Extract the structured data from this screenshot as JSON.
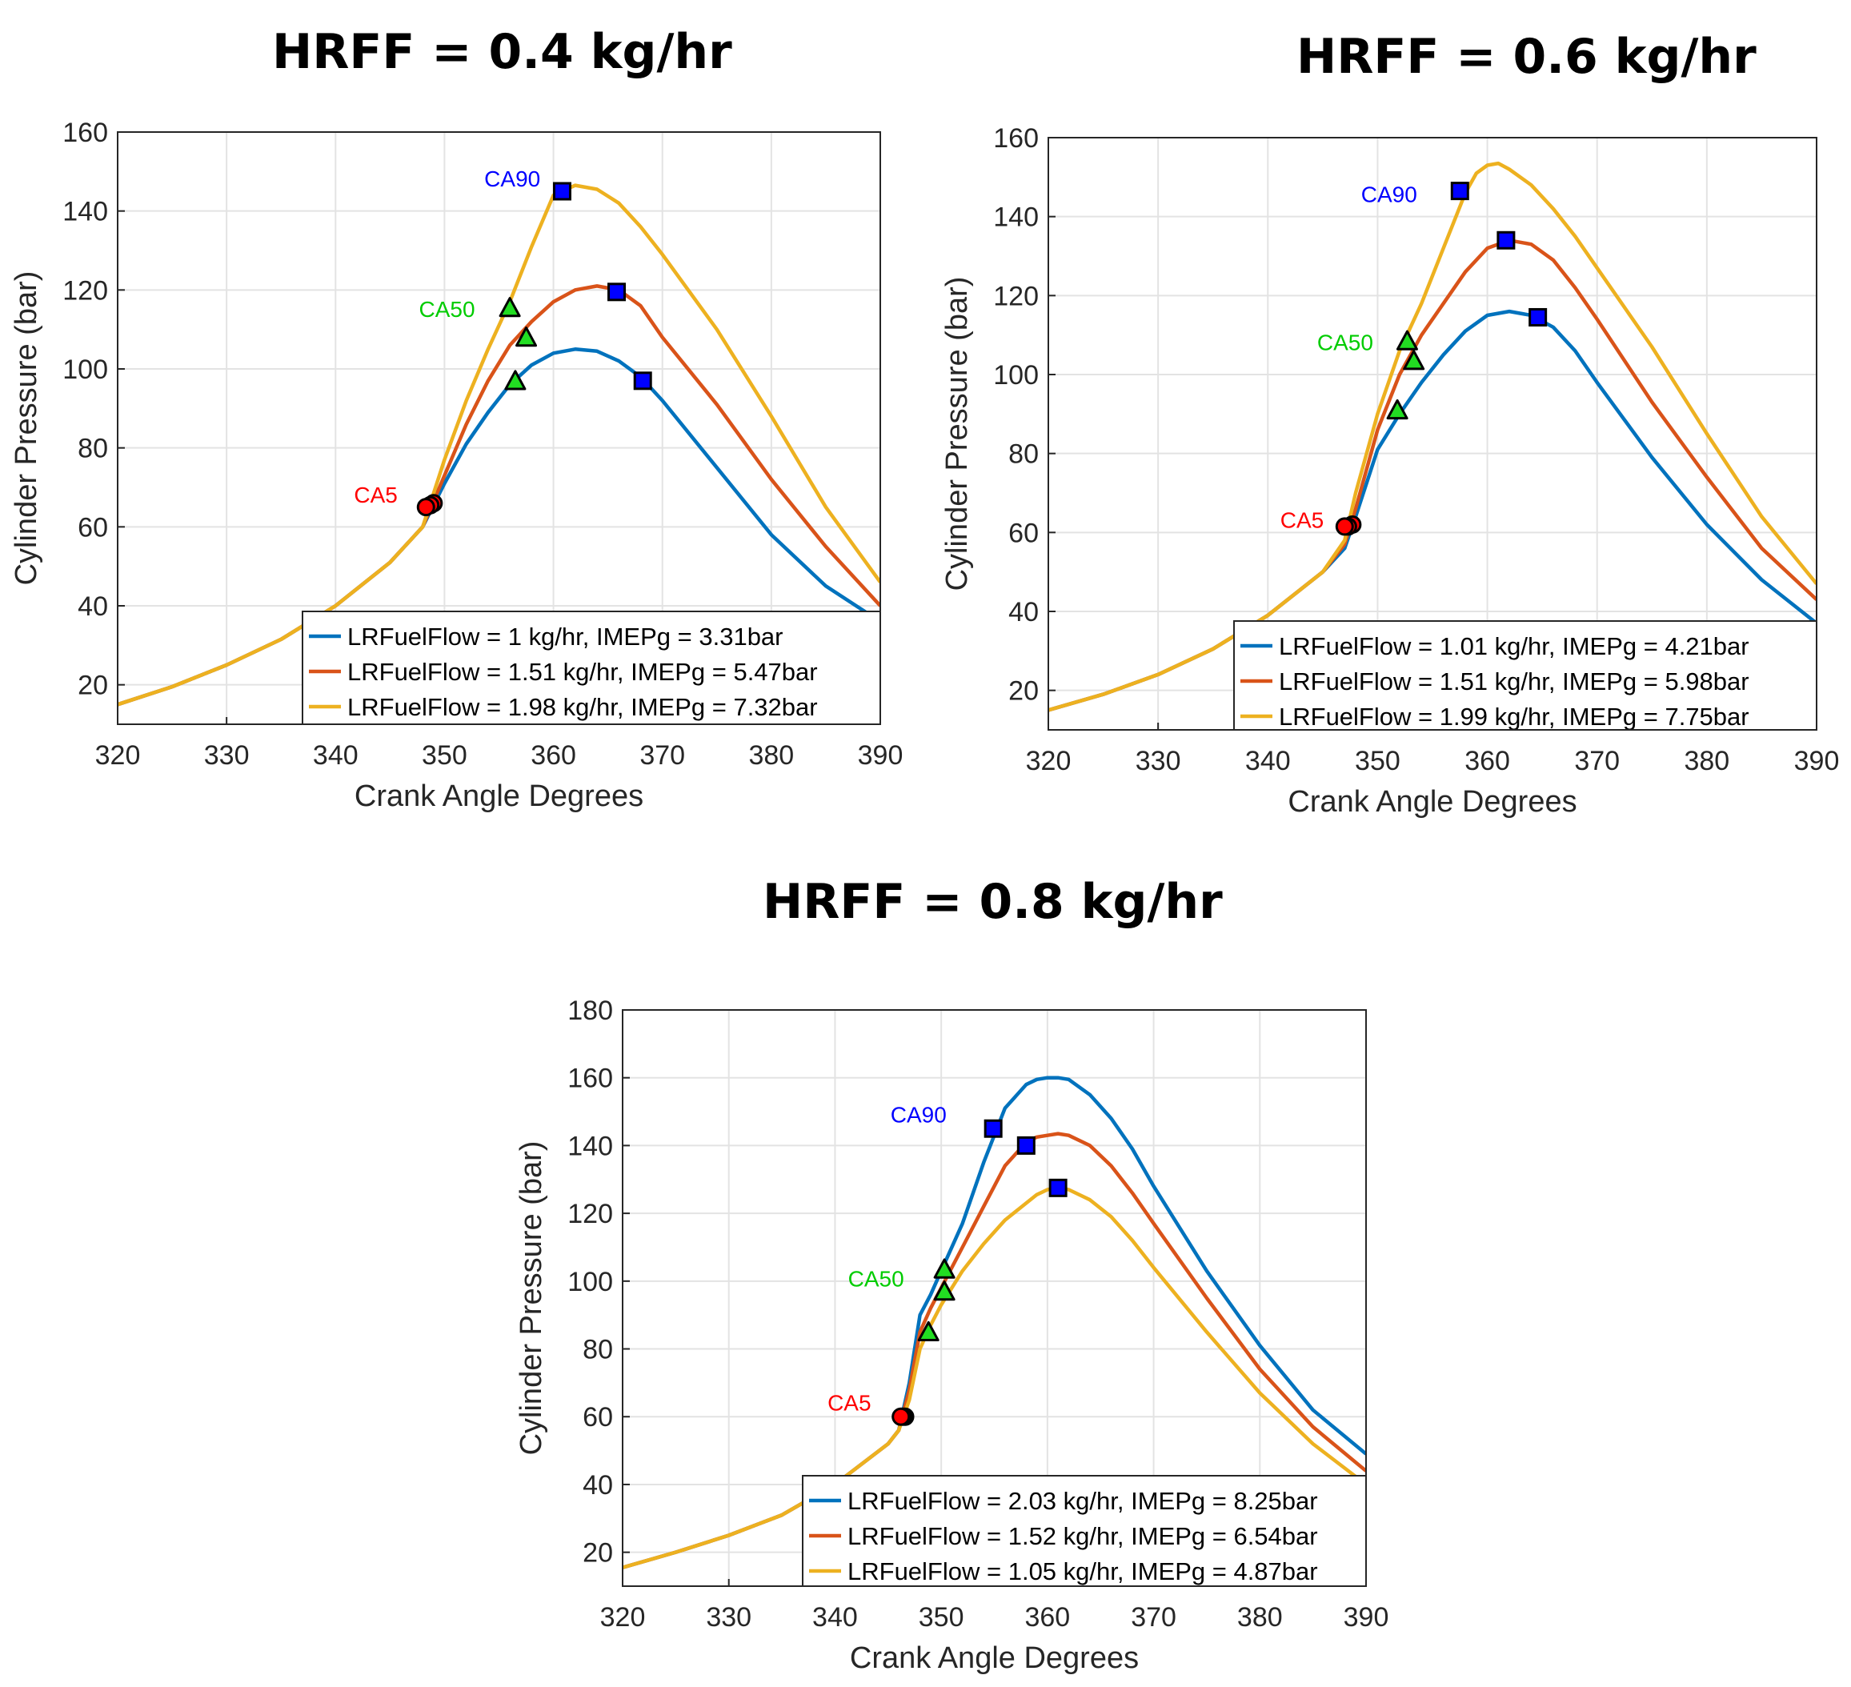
{
  "figure": {
    "colors": {
      "blue": "#0072bd",
      "orange": "#d95319",
      "yellow": "#edb120",
      "ca5_marker": "#ff0000",
      "ca50_marker": "#22dd22",
      "ca90_marker": "#0000ff",
      "ca5_label": "#ff0000",
      "ca50_label": "#00cc00",
      "ca90_label": "#0000ff",
      "grid": "#e3e3e3"
    }
  },
  "chart_data": [
    {
      "type": "line",
      "title": "HRFF = 0.4 kg/hr",
      "xlabel": "Crank Angle Degrees",
      "ylabel": "Cylinder Pressure (bar)",
      "xlim": [
        320,
        390
      ],
      "ylim": [
        10,
        160
      ],
      "xticks": [
        320,
        330,
        340,
        350,
        360,
        370,
        380,
        390
      ],
      "yticks": [
        20,
        40,
        60,
        80,
        100,
        120,
        140,
        160
      ],
      "grid": true,
      "legend_position": "bottom-right",
      "annotations": [
        {
          "text": "CA90",
          "x": 358.8,
          "y": 148,
          "color_key": "ca90_label"
        },
        {
          "text": "CA50",
          "x": 352.8,
          "y": 115,
          "color_key": "ca50_label"
        },
        {
          "text": "CA5",
          "x": 345.7,
          "y": 68,
          "color_key": "ca5_label"
        }
      ],
      "series": [
        {
          "name": "LRFuelFlow = 1 kg/hr, IMEPg = 3.31bar",
          "color_key": "blue",
          "x": [
            320,
            325,
            330,
            335,
            340,
            345,
            348,
            350,
            352,
            354,
            356,
            358,
            360,
            362,
            364,
            366,
            368,
            370,
            375,
            380,
            385,
            390
          ],
          "y": [
            15,
            19.5,
            25,
            31.5,
            40,
            51,
            60,
            71,
            81,
            89,
            96,
            101,
            104,
            105,
            104.5,
            102,
            98,
            92,
            75,
            58,
            45,
            36
          ],
          "points": [
            {
              "kind": "CA5",
              "x": 349,
              "y": 66
            },
            {
              "kind": "CA50",
              "x": 356.5,
              "y": 97
            },
            {
              "kind": "CA90",
              "x": 368.2,
              "y": 97
            }
          ]
        },
        {
          "name": "LRFuelFlow = 1.51 kg/hr, IMEPg = 5.47bar",
          "color_key": "orange",
          "x": [
            320,
            325,
            330,
            335,
            340,
            345,
            348,
            350,
            352,
            354,
            356,
            358,
            360,
            362,
            364,
            366,
            368,
            370,
            375,
            380,
            385,
            390
          ],
          "y": [
            15,
            19.5,
            25,
            31.5,
            40,
            51,
            60,
            73,
            86,
            97,
            106,
            112,
            117,
            120,
            121,
            120,
            116,
            108,
            91,
            72,
            55,
            40
          ],
          "points": [
            {
              "kind": "CA5",
              "x": 348.7,
              "y": 65.5
            },
            {
              "kind": "CA50",
              "x": 357.5,
              "y": 108
            },
            {
              "kind": "CA90",
              "x": 365.8,
              "y": 119.5
            }
          ]
        },
        {
          "name": "LRFuelFlow = 1.98 kg/hr, IMEPg = 7.32bar",
          "color_key": "yellow",
          "x": [
            320,
            325,
            330,
            335,
            340,
            345,
            348,
            350,
            352,
            354,
            356,
            358,
            360,
            362,
            364,
            366,
            368,
            370,
            375,
            380,
            385,
            390
          ],
          "y": [
            15,
            19.5,
            25,
            31.5,
            40,
            51,
            60,
            77,
            92,
            105,
            117,
            131,
            144,
            146.5,
            145.5,
            142,
            136,
            129,
            110,
            88,
            65,
            46
          ],
          "points": [
            {
              "kind": "CA5",
              "x": 348.3,
              "y": 65
            },
            {
              "kind": "CA50",
              "x": 356,
              "y": 115.5
            },
            {
              "kind": "CA90",
              "x": 360.8,
              "y": 145
            }
          ]
        }
      ]
    },
    {
      "type": "line",
      "title": "HRFF = 0.6 kg/hr",
      "xlabel": "Crank Angle Degrees",
      "ylabel": "Cylinder Pressure (bar)",
      "xlim": [
        320,
        390
      ],
      "ylim": [
        10,
        160
      ],
      "xticks": [
        320,
        330,
        340,
        350,
        360,
        370,
        380,
        390
      ],
      "yticks": [
        20,
        40,
        60,
        80,
        100,
        120,
        140,
        160
      ],
      "grid": true,
      "legend_position": "bottom-right",
      "annotations": [
        {
          "text": "CA90",
          "x": 353.6,
          "y": 145.5,
          "color_key": "ca90_label"
        },
        {
          "text": "CA50",
          "x": 349.6,
          "y": 108,
          "color_key": "ca50_label"
        },
        {
          "text": "CA5",
          "x": 345.1,
          "y": 63,
          "color_key": "ca5_label"
        }
      ],
      "series": [
        {
          "name": "LRFuelFlow = 1.01 kg/hr, IMEPg = 4.21bar",
          "color_key": "blue",
          "x": [
            320,
            325,
            330,
            335,
            340,
            345,
            347,
            348,
            350,
            352,
            354,
            356,
            358,
            360,
            362,
            364,
            366,
            368,
            370,
            375,
            380,
            385,
            390
          ],
          "y": [
            15,
            19,
            24,
            30.5,
            39,
            50,
            56,
            64,
            81,
            90,
            98,
            105,
            111,
            115,
            116,
            115,
            112,
            106,
            98,
            79,
            62,
            48,
            37
          ],
          "points": [
            {
              "kind": "CA5",
              "x": 347.7,
              "y": 62
            },
            {
              "kind": "CA50",
              "x": 351.8,
              "y": 91
            },
            {
              "kind": "CA90",
              "x": 364.6,
              "y": 114.5
            }
          ]
        },
        {
          "name": "LRFuelFlow = 1.51 kg/hr, IMEPg = 5.98bar",
          "color_key": "orange",
          "x": [
            320,
            325,
            330,
            335,
            340,
            345,
            347,
            348,
            350,
            352,
            354,
            356,
            358,
            360,
            362,
            364,
            366,
            368,
            370,
            375,
            380,
            385,
            390
          ],
          "y": [
            15,
            19,
            24,
            30.5,
            39,
            50,
            57,
            66,
            86,
            100,
            110,
            118,
            126,
            132,
            134,
            133,
            129,
            122,
            114,
            93,
            74,
            56,
            43
          ],
          "points": [
            {
              "kind": "CA5",
              "x": 347.3,
              "y": 61.5
            },
            {
              "kind": "CA50",
              "x": 353.3,
              "y": 103.5
            },
            {
              "kind": "CA90",
              "x": 361.7,
              "y": 134
            }
          ]
        },
        {
          "name": "LRFuelFlow = 1.99 kg/hr, IMEPg = 7.75bar",
          "color_key": "yellow",
          "x": [
            320,
            325,
            330,
            335,
            340,
            345,
            347,
            348,
            350,
            352,
            354,
            356,
            358,
            359,
            360,
            361,
            362,
            364,
            366,
            368,
            370,
            375,
            380,
            385,
            390
          ],
          "y": [
            15,
            19,
            24,
            30.5,
            39,
            50,
            58,
            70,
            90,
            106,
            118,
            132,
            146,
            151,
            153,
            153.5,
            152,
            148,
            142,
            135,
            127,
            107,
            85,
            64,
            47
          ],
          "points": [
            {
              "kind": "CA5",
              "x": 347,
              "y": 61.5
            },
            {
              "kind": "CA50",
              "x": 352.7,
              "y": 108.5
            },
            {
              "kind": "CA90",
              "x": 357.5,
              "y": 146.5
            }
          ]
        }
      ]
    },
    {
      "type": "line",
      "title": "HRFF = 0.8 kg/hr",
      "xlabel": "Crank Angle Degrees",
      "ylabel": "Cylinder Pressure (bar)",
      "xlim": [
        320,
        390
      ],
      "ylim": [
        10,
        180
      ],
      "xticks": [
        320,
        330,
        340,
        350,
        360,
        370,
        380,
        390
      ],
      "yticks": [
        20,
        40,
        60,
        80,
        100,
        120,
        140,
        160,
        180
      ],
      "grid": true,
      "legend_position": "bottom-right",
      "annotations": [
        {
          "text": "CA90",
          "x": 350.5,
          "y": 149,
          "color_key": "ca90_label"
        },
        {
          "text": "CA50",
          "x": 346.5,
          "y": 100.5,
          "color_key": "ca50_label"
        },
        {
          "text": "CA5",
          "x": 343.4,
          "y": 64,
          "color_key": "ca5_label"
        }
      ],
      "series": [
        {
          "name": "LRFuelFlow = 2.03 kg/hr, IMEPg = 8.25bar",
          "color_key": "blue",
          "x": [
            320,
            325,
            330,
            335,
            340,
            345,
            346,
            347,
            348,
            349,
            350,
            352,
            354,
            356,
            358,
            359,
            360,
            361,
            362,
            364,
            366,
            368,
            370,
            375,
            380,
            385,
            390
          ],
          "y": [
            15.5,
            20,
            25,
            31,
            40,
            52,
            56,
            70,
            90,
            96,
            103,
            117,
            135,
            151,
            158,
            159.5,
            160,
            160,
            159.5,
            155,
            148,
            139,
            128,
            103,
            81,
            62,
            49
          ],
          "points": [
            {
              "kind": "CA5",
              "x": 346.6,
              "y": 60
            },
            {
              "kind": "CA50",
              "x": 350.3,
              "y": 103.5
            },
            {
              "kind": "CA90",
              "x": 354.9,
              "y": 145
            }
          ]
        },
        {
          "name": "LRFuelFlow = 1.52 kg/hr, IMEPg = 6.54bar",
          "color_key": "orange",
          "x": [
            320,
            325,
            330,
            335,
            340,
            345,
            346,
            347,
            348,
            349,
            350,
            352,
            354,
            356,
            358,
            359,
            360,
            361,
            362,
            364,
            366,
            368,
            370,
            375,
            380,
            385,
            390
          ],
          "y": [
            15.5,
            20,
            25,
            31,
            40,
            52,
            56,
            68,
            85,
            92,
            98,
            110,
            122,
            134,
            141,
            142.5,
            143,
            143.5,
            143,
            140,
            134,
            126,
            117,
            95,
            74,
            57,
            44
          ],
          "points": [
            {
              "kind": "CA5",
              "x": 346.4,
              "y": 60
            },
            {
              "kind": "CA50",
              "x": 350.3,
              "y": 97
            },
            {
              "kind": "CA90",
              "x": 358,
              "y": 140
            }
          ]
        },
        {
          "name": "LRFuelFlow = 1.05 kg/hr, IMEPg = 4.87bar",
          "color_key": "yellow",
          "x": [
            320,
            325,
            330,
            335,
            340,
            345,
            346,
            347,
            348,
            349,
            350,
            352,
            354,
            356,
            358,
            359,
            360,
            361,
            362,
            364,
            366,
            368,
            370,
            375,
            380,
            385,
            390
          ],
          "y": [
            15.5,
            20,
            25,
            31,
            40,
            52,
            56,
            65,
            80,
            87,
            93,
            103,
            111,
            118,
            123,
            125.5,
            127,
            127.5,
            127,
            124,
            119,
            112,
            104,
            85,
            67,
            52,
            40
          ],
          "points": [
            {
              "kind": "CA5",
              "x": 346.2,
              "y": 60
            },
            {
              "kind": "CA50",
              "x": 348.8,
              "y": 85
            },
            {
              "kind": "CA90",
              "x": 361,
              "y": 127.5
            }
          ]
        }
      ]
    }
  ]
}
